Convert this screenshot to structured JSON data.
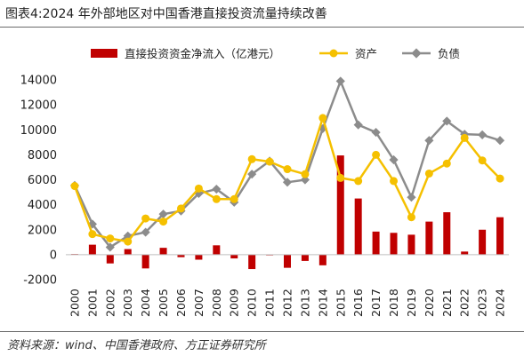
{
  "figure": {
    "title": "图表4:2024 年外部地区对中国香港直接投资流量持续改善",
    "source": "资料来源：wind、中国香港政府、方正证券研究所"
  },
  "colors": {
    "bar": "#c00000",
    "asset": "#f5c000",
    "liability": "#8c8c8c"
  },
  "chart_data": {
    "type": "bar",
    "categories": [
      "2000",
      "2001",
      "2002",
      "2003",
      "2004",
      "2005",
      "2006",
      "2007",
      "2008",
      "2009",
      "2010",
      "2011",
      "2012",
      "2013",
      "2014",
      "2015",
      "2016",
      "2017",
      "2018",
      "2019",
      "2020",
      "2021",
      "2022",
      "2023",
      "2024"
    ],
    "series": [
      {
        "name": "直接投资资金净流入（亿港元）",
        "type": "bar",
        "values": [
          50,
          800,
          -700,
          450,
          -1100,
          550,
          -200,
          -400,
          750,
          -300,
          -1150,
          0,
          -1050,
          -500,
          -850,
          7950,
          4500,
          1850,
          1750,
          1600,
          2650,
          3400,
          250,
          2000,
          3000
        ]
      },
      {
        "name": "资产",
        "type": "line",
        "values": [
          5500,
          1650,
          1300,
          1050,
          2900,
          2650,
          3700,
          5300,
          4450,
          4450,
          7650,
          7450,
          6850,
          6450,
          10950,
          6150,
          5900,
          8000,
          5900,
          3000,
          6500,
          7300,
          9350,
          7550,
          6100
        ]
      },
      {
        "name": "负债",
        "type": "line",
        "values": [
          5550,
          2450,
          600,
          1500,
          1800,
          3250,
          3500,
          4900,
          5250,
          4200,
          6450,
          7500,
          5800,
          6000,
          10100,
          13900,
          10400,
          9800,
          7600,
          4600,
          9150,
          10700,
          9650,
          9600,
          9150
        ]
      }
    ],
    "ylim": [
      -2000,
      14000
    ],
    "yticks": [
      -2000,
      0,
      2000,
      4000,
      6000,
      8000,
      10000,
      12000,
      14000
    ],
    "legend": "top-center",
    "grid": false
  }
}
